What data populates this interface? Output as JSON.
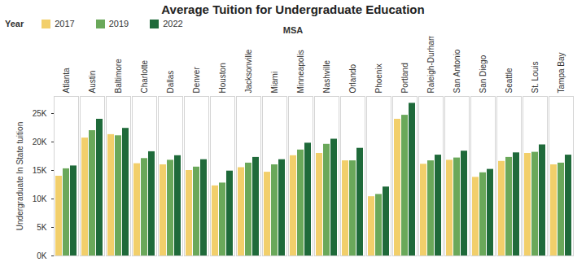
{
  "chart_data": {
    "type": "bar",
    "title": "Average Tuition for Undergraduate Education",
    "xlabel": "MSA",
    "ylabel": "Undergraduate In State tuition",
    "legend_title": "Year",
    "legend": "top-left",
    "grid": false,
    "categories": [
      "Atlanta",
      "Austin",
      "Baltimore",
      "Charlotte",
      "Dallas",
      "Denver",
      "Houston",
      "Jacksonville",
      "Miami",
      "Minneapolis",
      "Nashville",
      "Orlando",
      "Phoenix",
      "Portland",
      "Raleigh-Durham",
      "San Antonio",
      "San Diego",
      "Seattle",
      "St. Louis",
      "Tampa Bay"
    ],
    "series": [
      {
        "name": "2017",
        "color": "#f2cf6b",
        "values": [
          14000,
          20700,
          21300,
          16200,
          16000,
          15000,
          12300,
          15500,
          14700,
          17600,
          18000,
          16700,
          10400,
          24000,
          16100,
          16800,
          13800,
          16600,
          18000,
          16000
        ]
      },
      {
        "name": "2019",
        "color": "#6aa85a",
        "values": [
          15300,
          22000,
          21100,
          17100,
          16800,
          15600,
          12800,
          16300,
          16000,
          18600,
          19600,
          16700,
          10800,
          24700,
          16700,
          17200,
          14600,
          17300,
          18200,
          16300
        ]
      },
      {
        "name": "2022",
        "color": "#1f6a3a",
        "values": [
          15800,
          24000,
          22400,
          18300,
          17600,
          16900,
          14900,
          17300,
          16900,
          19800,
          20500,
          18900,
          12100,
          26800,
          17700,
          18400,
          15200,
          18100,
          19500,
          17700
        ]
      }
    ],
    "ylim": [
      0,
      28000
    ],
    "yticks": [
      {
        "value": 0,
        "label": "0K"
      },
      {
        "value": 5000,
        "label": "5K"
      },
      {
        "value": 10000,
        "label": "10K"
      },
      {
        "value": 15000,
        "label": "15K"
      },
      {
        "value": 20000,
        "label": "20K"
      },
      {
        "value": 25000,
        "label": "25K"
      }
    ]
  }
}
